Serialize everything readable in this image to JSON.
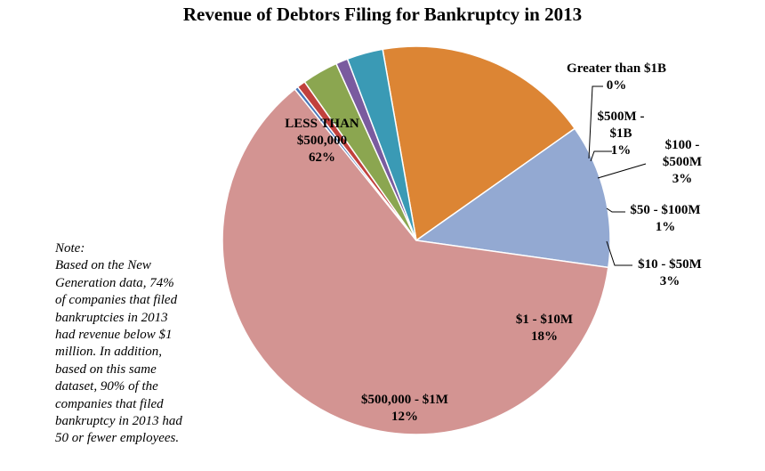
{
  "chart_data": {
    "type": "pie",
    "title": "Revenue of Debtors Filing for Bankruptcy in 2013",
    "slices": [
      {
        "label": [
          "$1 - $10M"
        ],
        "pct_text": "18%",
        "value": 18,
        "color": "#dc8534"
      },
      {
        "label": [
          "$500,000 - $1M"
        ],
        "pct_text": "12%",
        "value": 12,
        "color": "#93a9d2"
      },
      {
        "label": [
          "LESS THAN",
          "$500,000"
        ],
        "pct_text": "62%",
        "value": 62,
        "color": "#d39492"
      },
      {
        "label": [
          "Greater than $1B"
        ],
        "pct_text": "0%",
        "value": 0.3,
        "color": "#4a76b8"
      },
      {
        "label": [
          "$500M -",
          "$1B"
        ],
        "pct_text": "1%",
        "value": 0.7,
        "color": "#c1413d"
      },
      {
        "label": [
          "$100 -",
          "$500M"
        ],
        "pct_text": "3%",
        "value": 3,
        "color": "#8ba650"
      },
      {
        "label": [
          "$50 - $100M"
        ],
        "pct_text": "1%",
        "value": 1,
        "color": "#7a5b9f"
      },
      {
        "label": [
          "$10 - $50M"
        ],
        "pct_text": "3%",
        "value": 3,
        "color": "#3a9ab5"
      }
    ]
  },
  "note": {
    "lines": [
      "Note:",
      "Based on the New",
      "Generation data, 74%",
      "of companies that filed",
      "bankruptcies in 2013",
      "had revenue below $1",
      "million. In addition,",
      "based on this same",
      "dataset, 90% of the",
      "companies that filed",
      "bankruptcy in 2013 had",
      "50 or fewer employees."
    ]
  }
}
